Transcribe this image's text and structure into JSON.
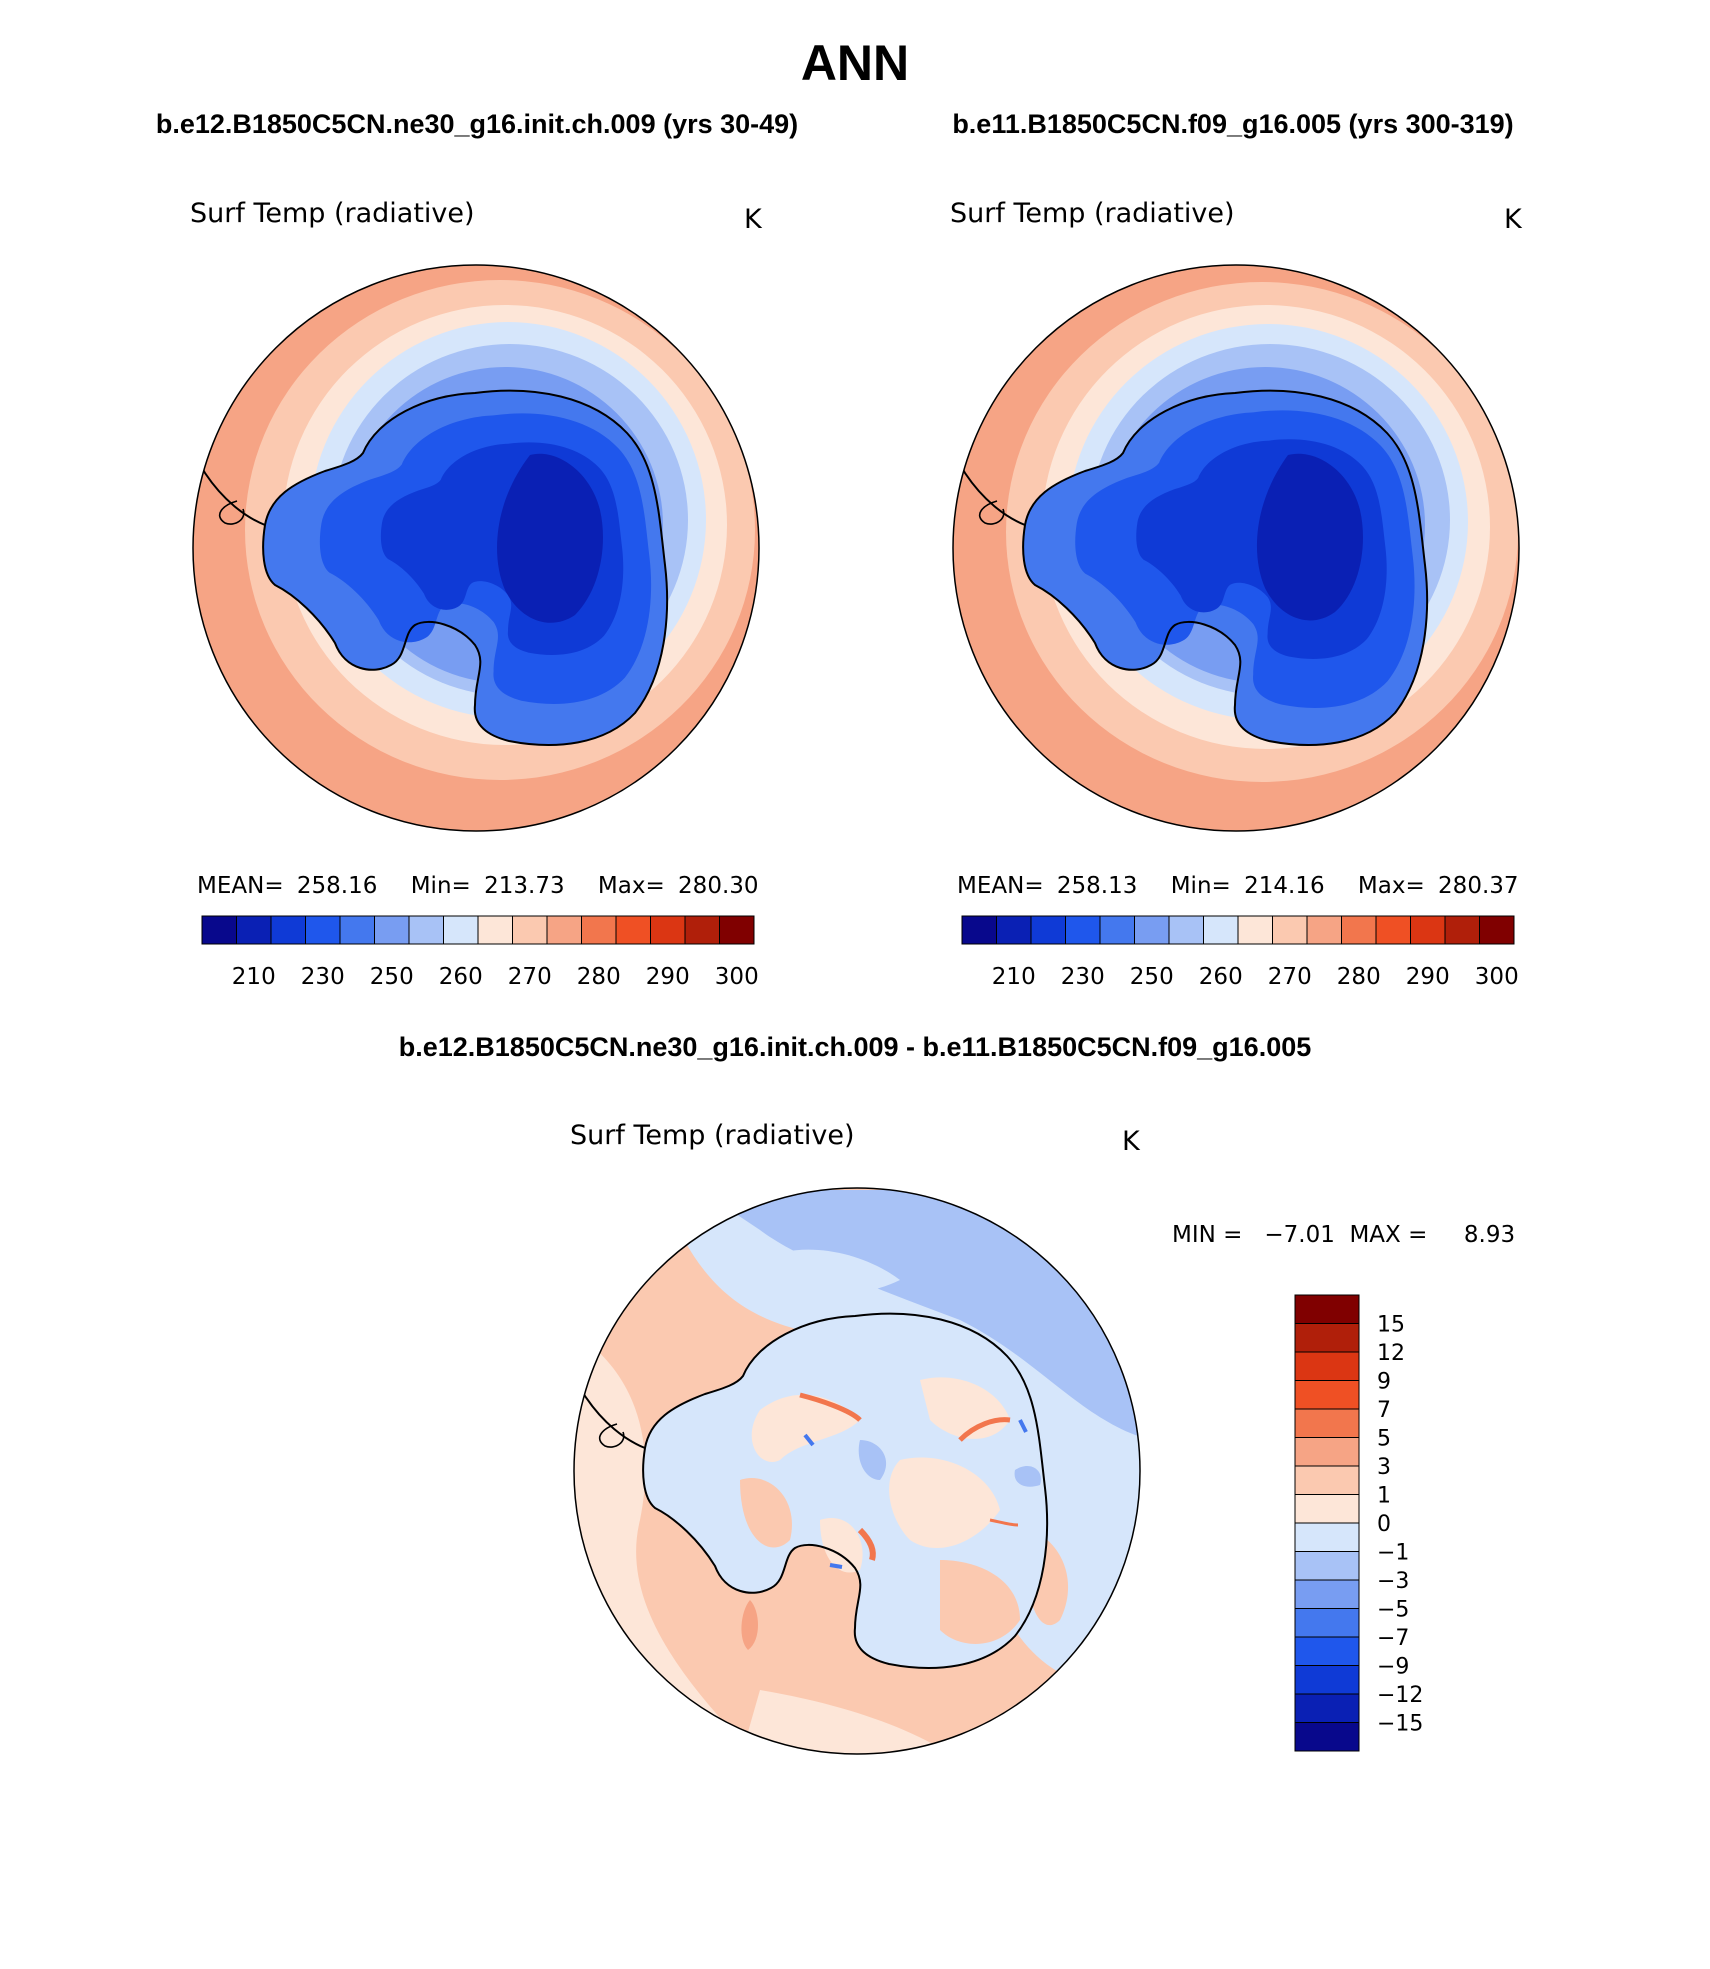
{
  "title": "ANN",
  "panels": [
    {
      "case": "b.e12.B1850C5CN.ne30_g16.init.ch.009 (yrs 30-49)",
      "variable": "Surf Temp (radiative)",
      "units": "K",
      "stats": {
        "mean_label": "MEAN=",
        "mean": "258.16",
        "min_label": "Min=",
        "min": "213.73",
        "max_label": "Max=",
        "max": "280.30"
      }
    },
    {
      "case": "b.e11.B1850C5CN.f09_g16.005 (yrs 300-319)",
      "variable": "Surf Temp (radiative)",
      "units": "K",
      "stats": {
        "mean_label": "MEAN=",
        "mean": "258.13",
        "min_label": "Min=",
        "min": "214.16",
        "max_label": "Max=",
        "max": "280.37"
      }
    }
  ],
  "diff": {
    "title": "b.e12.B1850C5CN.ne30_g16.init.ch.009 - b.e11.B1850C5CN.f09_g16.005",
    "variable": "Surf Temp (radiative)",
    "units": "K",
    "minmax": "MIN =   −7.01  MAX =     8.93"
  },
  "colorbar_abs": {
    "colors": [
      "#08088c",
      "#0a20b4",
      "#0f3ad6",
      "#1f57ec",
      "#4478ee",
      "#789df2",
      "#a8c2f6",
      "#d6e6fb",
      "#fde6d8",
      "#fbc9b0",
      "#f6a485",
      "#f2764d",
      "#ef5024",
      "#db3613",
      "#b01f0a",
      "#800000"
    ],
    "tick_labels": [
      "210",
      "230",
      "250",
      "260",
      "270",
      "280",
      "290",
      "300"
    ]
  },
  "colorbar_diff": {
    "colors": [
      "#800000",
      "#b01f0a",
      "#db3613",
      "#ef5024",
      "#f2764d",
      "#f6a485",
      "#fbc9b0",
      "#fde6d8",
      "#d6e6fb",
      "#a8c2f6",
      "#789df2",
      "#4478ee",
      "#1f57ec",
      "#0f3ad6",
      "#0a20b4",
      "#08088c"
    ],
    "tick_labels": [
      "15",
      "12",
      "9",
      "7",
      "5",
      "3",
      "1",
      "0",
      "−1",
      "−3",
      "−5",
      "−7",
      "−9",
      "−12",
      "−15"
    ]
  },
  "fill_colors": {
    "ocean_warm": "#f6a485",
    "ocean_mid": "#fbc9b0",
    "ocean_light": "#fde6d8",
    "ice_edge": "#d6e6fb",
    "ice_light": "#a8c2f6",
    "ice_mid": "#789df2",
    "land_1": "#4478ee",
    "land_2": "#1f57ec",
    "land_3": "#0f3ad6",
    "land_core": "#0a20b4",
    "diff_warm": "#fbc9b0",
    "diff_light": "#fde6d8",
    "diff_cool": "#d6e6fb",
    "diff_cooler": "#a8c2f6",
    "diff_hot": "#f2764d",
    "diff_cold": "#4478ee"
  }
}
